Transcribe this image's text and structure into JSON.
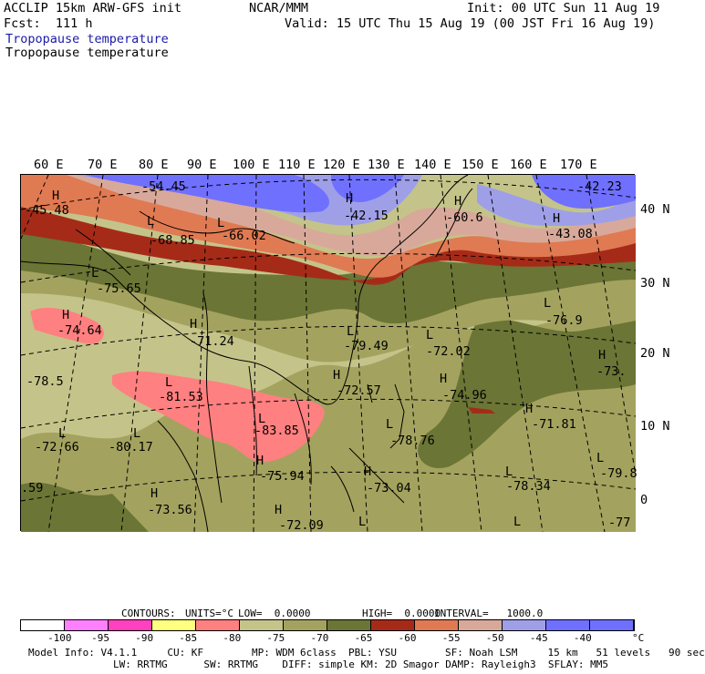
{
  "header": {
    "model": "ACCLIP 15km ARW-GFS init",
    "org": "NCAR/MMM",
    "init": "Init: 00 UTC Sun 11 Aug 19",
    "fcst": "Fcst:  111 h",
    "valid": "Valid: 15 UTC Thu 15 Aug 19 (00 JST Fri 16 Aug 19)",
    "field_title_blue": "Tropopause temperature",
    "field_title_black": "Tropopause temperature"
  },
  "map": {
    "lon_labels": [
      "60 E",
      "70 E",
      "80 E",
      "90 E",
      "100 E",
      "110 E",
      "120 E",
      "130 E",
      "140 E",
      "150 E",
      "160 E",
      "170 E"
    ],
    "lat_labels": [
      "40 N",
      "30 N",
      "20 N",
      "10 N",
      "0"
    ],
    "colors": {
      "c_gt_-40": "#7070ff",
      "c_-45": "#9f9fe8",
      "c_-50": "#d8a99a",
      "c_-55": "#e07a52",
      "c_-60": "#a52b18",
      "c_-70": "#6b7535",
      "c_-75": "#a3a35f",
      "c_-80": "#c4c48a",
      "c_-85": "#ff8080"
    },
    "hl_labels": [
      {
        "text": "H",
        "id": "h1"
      },
      {
        "text": "-45.48",
        "id": "v1"
      },
      {
        "text": "-54.45",
        "id": "v2"
      },
      {
        "text": "L",
        "id": "l1"
      },
      {
        "text": "-68.85",
        "id": "v3"
      },
      {
        "text": "L",
        "id": "l2"
      },
      {
        "text": "-66.02",
        "id": "v4"
      },
      {
        "text": "H",
        "id": "h2"
      },
      {
        "text": "-42.15",
        "id": "v5"
      },
      {
        "text": "H",
        "id": "h3"
      },
      {
        "text": "-60.6",
        "id": "v6"
      },
      {
        "text": "-42.23",
        "id": "v7"
      },
      {
        "text": "H",
        "id": "h4"
      },
      {
        "text": "-43.08",
        "id": "v8"
      },
      {
        "text": "L",
        "id": "l3"
      },
      {
        "text": "-75.65",
        "id": "v9"
      },
      {
        "text": "H",
        "id": "h5"
      },
      {
        "text": "-74.64",
        "id": "v10"
      },
      {
        "text": "H",
        "id": "h6"
      },
      {
        "text": "-71.24",
        "id": "v11"
      },
      {
        "text": "L",
        "id": "l4"
      },
      {
        "text": "-79.49",
        "id": "v12"
      },
      {
        "text": "L",
        "id": "l5"
      },
      {
        "text": "-72.02",
        "id": "v13"
      },
      {
        "text": "L",
        "id": "l6"
      },
      {
        "text": "-76.9",
        "id": "v14"
      },
      {
        "text": "H",
        "id": "h7"
      },
      {
        "text": "-73.",
        "id": "v15"
      },
      {
        "text": "-78.5",
        "id": "v16"
      },
      {
        "text": "L",
        "id": "l7"
      },
      {
        "text": "-81.53",
        "id": "v17"
      },
      {
        "text": "H",
        "id": "h8"
      },
      {
        "text": "-72.57",
        "id": "v18"
      },
      {
        "text": "H",
        "id": "h9"
      },
      {
        "text": "-74.96",
        "id": "v19"
      },
      {
        "text": "H",
        "id": "h10"
      },
      {
        "text": "-71.81",
        "id": "v20"
      },
      {
        "text": "L",
        "id": "l8"
      },
      {
        "text": "-83.85",
        "id": "v21"
      },
      {
        "text": "L",
        "id": "l9"
      },
      {
        "text": "-72.66",
        "id": "v22"
      },
      {
        "text": "L",
        "id": "l10"
      },
      {
        "text": "-80.17",
        "id": "v23"
      },
      {
        "text": "L",
        "id": "l11"
      },
      {
        "text": "-78.76",
        "id": "v24"
      },
      {
        "text": "H",
        "id": "h11"
      },
      {
        "text": "-75.94",
        "id": "v25"
      },
      {
        "text": "L",
        "id": "l12"
      },
      {
        "text": "-79.8",
        "id": "v26"
      },
      {
        "text": ".59",
        "id": "v27"
      },
      {
        "text": "H",
        "id": "h12"
      },
      {
        "text": "-73.56",
        "id": "v28"
      },
      {
        "text": "H",
        "id": "h13"
      },
      {
        "text": "-73.04",
        "id": "v29"
      },
      {
        "text": "L",
        "id": "l13"
      },
      {
        "text": "-78.34",
        "id": "v30"
      },
      {
        "text": "H",
        "id": "h14"
      },
      {
        "text": "-72.09",
        "id": "v31"
      },
      {
        "text": "L",
        "id": "l14"
      },
      {
        "text": "L",
        "id": "l15"
      },
      {
        "text": "-77",
        "id": "v32"
      }
    ]
  },
  "contour_info": {
    "contours": "CONTOURS:",
    "units": "UNITS=°C",
    "low": "LOW=  0.0000",
    "high": "HIGH=  0.0000",
    "interval": "INTERVAL=   1000.0"
  },
  "colorbar": {
    "colors": [
      "#ffffff",
      "#ff80ff",
      "#ff40c0",
      "#ffff80",
      "#ff8080",
      "#c4c48a",
      "#a3a35f",
      "#6b7535",
      "#a52b18",
      "#e07a52",
      "#d8a99a",
      "#9f9fe8",
      "#7070ff",
      "#7070ff"
    ],
    "ticks": [
      "-100",
      "-95",
      "-90",
      "-85",
      "-80",
      "-75",
      "-70",
      "-65",
      "-60",
      "-55",
      "-50",
      "-45",
      "-40",
      "°C"
    ]
  },
  "footer": {
    "line1": "Model Info: V4.1.1     CU: KF        MP: WDM 6class  PBL: YSU        SF: Noah LSM     15 km   51 levels   90 sec",
    "line2": "LW: RRTMG      SW: RRTMG    DIFF: simple KM: 2D Smagor DAMP: Rayleigh3  SFLAY: MM5"
  }
}
